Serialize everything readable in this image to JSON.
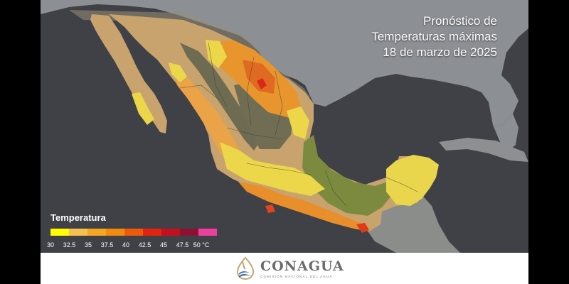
{
  "title": {
    "line1": "Pronóstico de",
    "line2": "Temperaturas máximas",
    "line3": "18 de marzo de 2025"
  },
  "legend": {
    "title": "Temperatura",
    "unit": "°C",
    "thresholds": [
      "30",
      "32.5",
      "35",
      "37.5",
      "40",
      "42.5",
      "45",
      "47.5",
      "50 °C"
    ],
    "colors": [
      "#ffff00",
      "#f7c14f",
      "#f5a623",
      "#f28a10",
      "#ef5a0a",
      "#e52212",
      "#c4101e",
      "#8c1235",
      "#ee3f9c"
    ]
  },
  "map_colors": {
    "ocean": "#3f4147",
    "land_outside": "#8a8d91",
    "desert": "#c7a26f",
    "mountain": "#6c6a52",
    "green": "#7a8a3e",
    "temp_30": "#ecd84a",
    "temp_35": "#f0a63d",
    "temp_37": "#e88a2c",
    "temp_40": "#e0561f"
  },
  "footer": {
    "brand": "CONAGUA",
    "subtitle": "COMISIÓN NACIONAL DEL AGUA",
    "logo_icon": "conagua-logo-icon"
  }
}
